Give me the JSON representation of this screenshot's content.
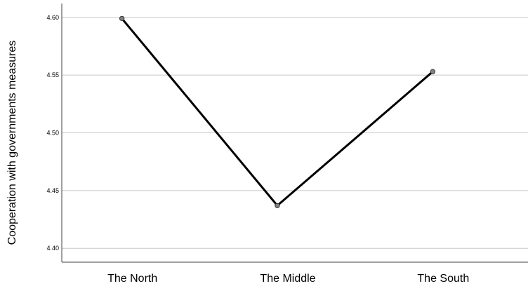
{
  "chart_data": {
    "type": "line",
    "categories": [
      "The North",
      "The Middle",
      "The South"
    ],
    "series": [
      {
        "values": [
          4.599,
          4.437,
          4.553
        ],
        "color": "#000000",
        "marker_color": "#808080"
      }
    ],
    "title": "",
    "xlabel": "",
    "ylabel": "Cooperation with governments measures",
    "ylim": [
      4.388,
      4.612
    ],
    "yticks": [
      "4.40",
      "4.45",
      "4.50",
      "4.55",
      "4.60"
    ],
    "grid": true,
    "legend": "none",
    "gridline_color": "#c8c8c8",
    "axis_color": "#404040"
  }
}
